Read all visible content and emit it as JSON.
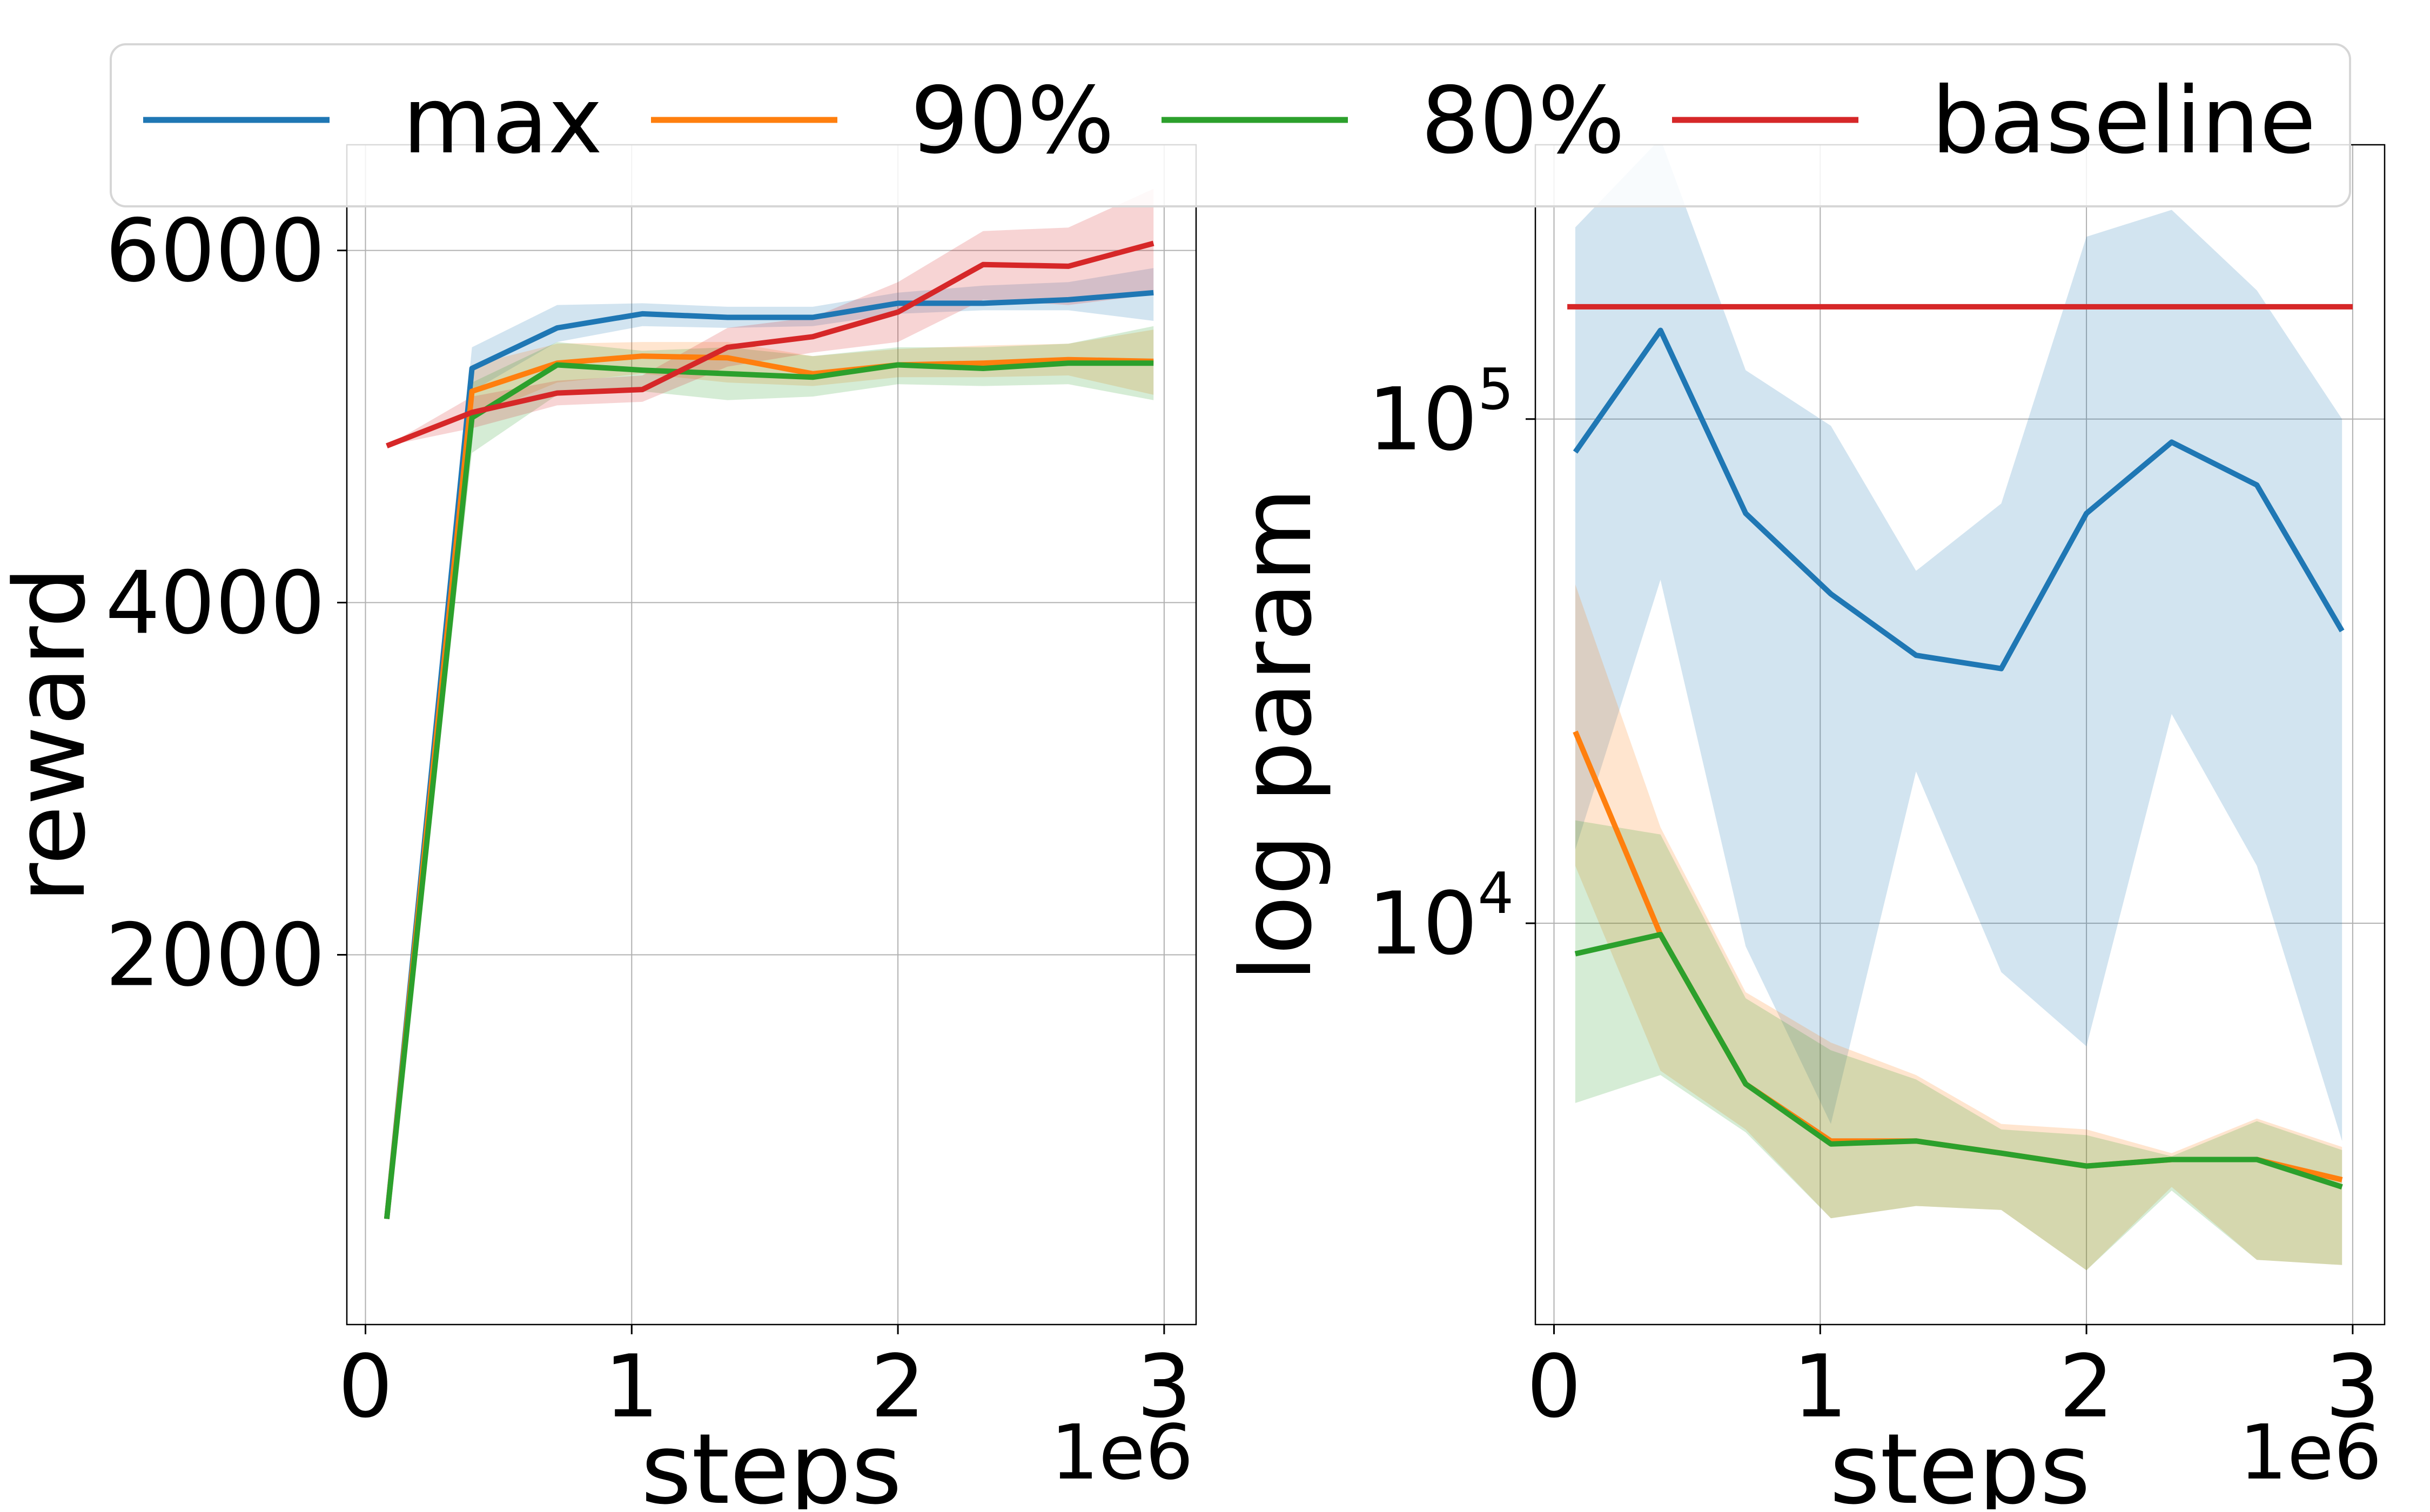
{
  "legend": {
    "entries": [
      {
        "label": "max",
        "color": "#1f77b4"
      },
      {
        "label": "90%",
        "color": "#ff7f0e"
      },
      {
        "label": "80%",
        "color": "#2ca02c"
      },
      {
        "label": "baseline",
        "color": "#d62728"
      }
    ],
    "placement": "top-center"
  },
  "chart_data": [
    {
      "type": "line",
      "xlabel": "steps",
      "ylabel": "reward",
      "x_multiplier_label": "1e6",
      "xlim": [
        -0.07,
        3.12
      ],
      "ylim": [
        -100,
        6600
      ],
      "x_ticks": [
        0,
        1,
        2,
        3
      ],
      "x_tick_labels": [
        "0",
        "1",
        "2",
        "3"
      ],
      "y_ticks": [
        2000,
        4000,
        6000
      ],
      "y_tick_labels": [
        "2000",
        "4000",
        "6000"
      ],
      "grid": true,
      "series": [
        {
          "name": "max",
          "color": "#1f77b4",
          "x": [
            0.08,
            0.4,
            0.72,
            1.04,
            1.36,
            1.68,
            2.0,
            2.32,
            2.64,
            2.96
          ],
          "y": [
            500,
            5330,
            5560,
            5640,
            5620,
            5620,
            5700,
            5700,
            5720,
            5760
          ],
          "lower": [
            500,
            5200,
            5480,
            5570,
            5560,
            5570,
            5640,
            5660,
            5660,
            5600
          ],
          "upper": [
            500,
            5450,
            5690,
            5700,
            5680,
            5680,
            5760,
            5800,
            5820,
            5900
          ]
        },
        {
          "name": "90%",
          "color": "#ff7f0e",
          "x": [
            0.08,
            0.4,
            0.72,
            1.04,
            1.36,
            1.68,
            2.0,
            2.32,
            2.64,
            2.96
          ],
          "y": [
            500,
            5200,
            5360,
            5400,
            5390,
            5300,
            5350,
            5360,
            5380,
            5370
          ],
          "lower": [
            500,
            5050,
            5250,
            5300,
            5250,
            5230,
            5280,
            5280,
            5290,
            5180
          ],
          "upper": [
            500,
            5350,
            5470,
            5480,
            5480,
            5400,
            5440,
            5460,
            5470,
            5550
          ]
        },
        {
          "name": "80%",
          "color": "#2ca02c",
          "x": [
            0.08,
            0.4,
            0.72,
            1.04,
            1.36,
            1.68,
            2.0,
            2.32,
            2.64,
            2.96
          ],
          "y": [
            500,
            5050,
            5350,
            5320,
            5300,
            5280,
            5350,
            5330,
            5360,
            5360
          ],
          "lower": [
            500,
            4850,
            5180,
            5200,
            5150,
            5170,
            5240,
            5230,
            5240,
            5150
          ],
          "upper": [
            500,
            5250,
            5480,
            5430,
            5450,
            5400,
            5450,
            5450,
            5470,
            5570
          ]
        },
        {
          "name": "baseline",
          "color": "#d62728",
          "x": [
            0.08,
            0.4,
            0.72,
            1.04,
            1.36,
            1.68,
            2.0,
            2.32,
            2.64,
            2.96
          ],
          "y": [
            4890,
            5080,
            5190,
            5210,
            5450,
            5510,
            5650,
            5920,
            5910,
            6040
          ],
          "lower": [
            4890,
            4990,
            5120,
            5140,
            5340,
            5420,
            5480,
            5720,
            5690,
            5750
          ],
          "upper": [
            4890,
            5170,
            5260,
            5290,
            5560,
            5620,
            5820,
            6110,
            6130,
            6350
          ]
        }
      ]
    },
    {
      "type": "line",
      "xlabel": "steps",
      "ylabel": "log param",
      "x_multiplier_label": "1e6",
      "yscale": "log",
      "xlim": [
        -0.07,
        3.12
      ],
      "ylim": [
        1600,
        350000
      ],
      "x_ticks": [
        0,
        1,
        2,
        3
      ],
      "x_tick_labels": [
        "0",
        "1",
        "2",
        "3"
      ],
      "y_ticks": [
        10000,
        100000
      ],
      "y_tick_labels": [
        {
          "base": "10",
          "exp": "4"
        },
        {
          "base": "10",
          "exp": "5"
        }
      ],
      "grid": true,
      "series": [
        {
          "name": "max",
          "color": "#1f77b4",
          "x": [
            0.08,
            0.4,
            0.72,
            1.04,
            1.36,
            1.68,
            2.0,
            2.32,
            2.64,
            2.96
          ],
          "y": [
            86000,
            150000,
            65000,
            45000,
            34000,
            32000,
            65000,
            90000,
            74000,
            38000
          ],
          "lower": [
            14000,
            48000,
            9000,
            4000,
            20000,
            8000,
            5700,
            26000,
            13000,
            3700
          ],
          "upper": [
            240000,
            360000,
            125000,
            97000,
            50000,
            68000,
            230000,
            260000,
            180000,
            100000
          ]
        },
        {
          "name": "90%",
          "color": "#ff7f0e",
          "x": [
            0.08,
            0.4,
            0.72,
            1.04,
            1.36,
            1.68,
            2.0,
            2.32,
            2.64,
            2.96
          ],
          "y": [
            24000,
            9500,
            4800,
            3700,
            3700,
            3500,
            3300,
            3400,
            3400,
            3100
          ],
          "lower": [
            13000,
            5100,
            3900,
            2600,
            2750,
            2700,
            2050,
            3000,
            2150,
            2100
          ],
          "upper": [
            47000,
            15500,
            7300,
            5800,
            5000,
            4000,
            3900,
            3500,
            4100,
            3600
          ]
        },
        {
          "name": "80%",
          "color": "#2ca02c",
          "x": [
            0.08,
            0.4,
            0.72,
            1.04,
            1.36,
            1.68,
            2.0,
            2.32,
            2.64,
            2.96
          ],
          "y": [
            8700,
            9500,
            4800,
            3650,
            3700,
            3500,
            3300,
            3400,
            3400,
            3000
          ],
          "lower": [
            4400,
            5000,
            3850,
            2600,
            2750,
            2700,
            2050,
            2950,
            2150,
            2100
          ],
          "upper": [
            16000,
            15000,
            7100,
            5600,
            4900,
            3900,
            3800,
            3450,
            4050,
            3550
          ]
        },
        {
          "name": "baseline",
          "color": "#d62728",
          "x": [
            0.05,
            3.0
          ],
          "y": [
            167000,
            167000
          ],
          "lower": [
            167000,
            167000
          ],
          "upper": [
            167000,
            167000
          ]
        }
      ]
    }
  ]
}
